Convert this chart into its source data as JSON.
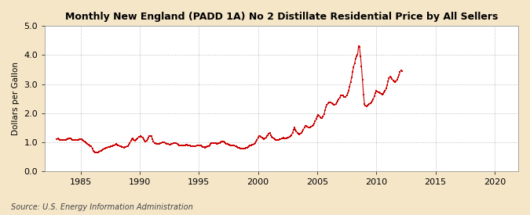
{
  "title": "Monthly New England (PADD 1A) No 2 Distillate Residential Price by All Sellers",
  "ylabel": "Dollars per Gallon",
  "source": "Source: U.S. Energy Information Administration",
  "outer_bg": "#f5e6c8",
  "plot_bg": "#ffffff",
  "line_color": "#cc0000",
  "xlim": [
    1982,
    2022
  ],
  "ylim": [
    0.0,
    5.0
  ],
  "yticks": [
    0.0,
    1.0,
    2.0,
    3.0,
    4.0,
    5.0
  ],
  "xticks": [
    1985,
    1990,
    1995,
    2000,
    2005,
    2010,
    2015,
    2020
  ],
  "data": [
    [
      1983.0,
      1.1
    ],
    [
      1983.08,
      1.12
    ],
    [
      1983.17,
      1.11
    ],
    [
      1983.25,
      1.09
    ],
    [
      1983.33,
      1.08
    ],
    [
      1983.42,
      1.07
    ],
    [
      1983.5,
      1.07
    ],
    [
      1983.58,
      1.08
    ],
    [
      1983.67,
      1.09
    ],
    [
      1983.75,
      1.09
    ],
    [
      1983.83,
      1.1
    ],
    [
      1983.92,
      1.11
    ],
    [
      1984.0,
      1.12
    ],
    [
      1984.08,
      1.13
    ],
    [
      1984.17,
      1.12
    ],
    [
      1984.25,
      1.1
    ],
    [
      1984.33,
      1.09
    ],
    [
      1984.42,
      1.08
    ],
    [
      1984.5,
      1.07
    ],
    [
      1984.58,
      1.07
    ],
    [
      1984.67,
      1.07
    ],
    [
      1984.75,
      1.08
    ],
    [
      1984.83,
      1.09
    ],
    [
      1984.92,
      1.1
    ],
    [
      1985.0,
      1.1
    ],
    [
      1985.08,
      1.1
    ],
    [
      1985.17,
      1.08
    ],
    [
      1985.25,
      1.04
    ],
    [
      1985.33,
      1.01
    ],
    [
      1985.42,
      0.99
    ],
    [
      1985.5,
      0.96
    ],
    [
      1985.58,
      0.93
    ],
    [
      1985.67,
      0.91
    ],
    [
      1985.75,
      0.89
    ],
    [
      1985.83,
      0.87
    ],
    [
      1985.92,
      0.85
    ],
    [
      1986.0,
      0.78
    ],
    [
      1986.08,
      0.69
    ],
    [
      1986.17,
      0.66
    ],
    [
      1986.25,
      0.65
    ],
    [
      1986.33,
      0.64
    ],
    [
      1986.42,
      0.64
    ],
    [
      1986.5,
      0.65
    ],
    [
      1986.58,
      0.67
    ],
    [
      1986.67,
      0.69
    ],
    [
      1986.75,
      0.71
    ],
    [
      1986.83,
      0.73
    ],
    [
      1986.92,
      0.75
    ],
    [
      1987.0,
      0.77
    ],
    [
      1987.08,
      0.79
    ],
    [
      1987.17,
      0.81
    ],
    [
      1987.25,
      0.82
    ],
    [
      1987.33,
      0.83
    ],
    [
      1987.42,
      0.84
    ],
    [
      1987.5,
      0.84
    ],
    [
      1987.58,
      0.85
    ],
    [
      1987.67,
      0.86
    ],
    [
      1987.75,
      0.88
    ],
    [
      1987.83,
      0.89
    ],
    [
      1987.92,
      0.91
    ],
    [
      1988.0,
      0.93
    ],
    [
      1988.08,
      0.92
    ],
    [
      1988.17,
      0.9
    ],
    [
      1988.25,
      0.88
    ],
    [
      1988.33,
      0.86
    ],
    [
      1988.42,
      0.85
    ],
    [
      1988.5,
      0.84
    ],
    [
      1988.58,
      0.83
    ],
    [
      1988.67,
      0.82
    ],
    [
      1988.75,
      0.83
    ],
    [
      1988.83,
      0.84
    ],
    [
      1988.92,
      0.85
    ],
    [
      1989.0,
      0.87
    ],
    [
      1989.08,
      0.91
    ],
    [
      1989.17,
      0.97
    ],
    [
      1989.25,
      1.04
    ],
    [
      1989.33,
      1.11
    ],
    [
      1989.42,
      1.13
    ],
    [
      1989.5,
      1.09
    ],
    [
      1989.58,
      1.06
    ],
    [
      1989.67,
      1.07
    ],
    [
      1989.75,
      1.1
    ],
    [
      1989.83,
      1.14
    ],
    [
      1989.92,
      1.18
    ],
    [
      1990.0,
      1.18
    ],
    [
      1990.08,
      1.22
    ],
    [
      1990.17,
      1.19
    ],
    [
      1990.25,
      1.16
    ],
    [
      1990.33,
      1.11
    ],
    [
      1990.42,
      1.06
    ],
    [
      1990.5,
      1.02
    ],
    [
      1990.58,
      1.04
    ],
    [
      1990.67,
      1.1
    ],
    [
      1990.75,
      1.17
    ],
    [
      1990.83,
      1.22
    ],
    [
      1990.92,
      1.22
    ],
    [
      1991.0,
      1.2
    ],
    [
      1991.08,
      1.1
    ],
    [
      1991.17,
      1.02
    ],
    [
      1991.25,
      0.98
    ],
    [
      1991.33,
      0.96
    ],
    [
      1991.42,
      0.94
    ],
    [
      1991.5,
      0.93
    ],
    [
      1991.58,
      0.93
    ],
    [
      1991.67,
      0.94
    ],
    [
      1991.75,
      0.96
    ],
    [
      1991.83,
      0.98
    ],
    [
      1991.92,
      1.0
    ],
    [
      1992.0,
      1.0
    ],
    [
      1992.08,
      0.99
    ],
    [
      1992.17,
      0.97
    ],
    [
      1992.25,
      0.95
    ],
    [
      1992.33,
      0.94
    ],
    [
      1992.42,
      0.93
    ],
    [
      1992.5,
      0.92
    ],
    [
      1992.58,
      0.92
    ],
    [
      1992.67,
      0.93
    ],
    [
      1992.75,
      0.94
    ],
    [
      1992.83,
      0.96
    ],
    [
      1992.92,
      0.97
    ],
    [
      1993.0,
      0.97
    ],
    [
      1993.08,
      0.96
    ],
    [
      1993.17,
      0.94
    ],
    [
      1993.25,
      0.92
    ],
    [
      1993.33,
      0.9
    ],
    [
      1993.42,
      0.89
    ],
    [
      1993.5,
      0.88
    ],
    [
      1993.58,
      0.88
    ],
    [
      1993.67,
      0.88
    ],
    [
      1993.75,
      0.89
    ],
    [
      1993.83,
      0.9
    ],
    [
      1993.92,
      0.91
    ],
    [
      1994.0,
      0.91
    ],
    [
      1994.08,
      0.9
    ],
    [
      1994.17,
      0.89
    ],
    [
      1994.25,
      0.88
    ],
    [
      1994.33,
      0.87
    ],
    [
      1994.42,
      0.86
    ],
    [
      1994.5,
      0.85
    ],
    [
      1994.58,
      0.85
    ],
    [
      1994.67,
      0.86
    ],
    [
      1994.75,
      0.87
    ],
    [
      1994.83,
      0.88
    ],
    [
      1994.92,
      0.89
    ],
    [
      1995.0,
      0.9
    ],
    [
      1995.08,
      0.9
    ],
    [
      1995.17,
      0.88
    ],
    [
      1995.25,
      0.86
    ],
    [
      1995.33,
      0.84
    ],
    [
      1995.42,
      0.83
    ],
    [
      1995.5,
      0.82
    ],
    [
      1995.58,
      0.83
    ],
    [
      1995.67,
      0.84
    ],
    [
      1995.75,
      0.85
    ],
    [
      1995.83,
      0.87
    ],
    [
      1995.92,
      0.89
    ],
    [
      1996.0,
      0.93
    ],
    [
      1996.08,
      0.96
    ],
    [
      1996.17,
      0.97
    ],
    [
      1996.25,
      0.98
    ],
    [
      1996.33,
      0.97
    ],
    [
      1996.42,
      0.96
    ],
    [
      1996.5,
      0.95
    ],
    [
      1996.58,
      0.95
    ],
    [
      1996.67,
      0.96
    ],
    [
      1996.75,
      0.97
    ],
    [
      1996.83,
      0.99
    ],
    [
      1996.92,
      1.01
    ],
    [
      1997.0,
      1.02
    ],
    [
      1997.08,
      1.01
    ],
    [
      1997.17,
      0.99
    ],
    [
      1997.25,
      0.96
    ],
    [
      1997.33,
      0.94
    ],
    [
      1997.42,
      0.93
    ],
    [
      1997.5,
      0.92
    ],
    [
      1997.58,
      0.91
    ],
    [
      1997.67,
      0.9
    ],
    [
      1997.75,
      0.89
    ],
    [
      1997.83,
      0.89
    ],
    [
      1997.92,
      0.89
    ],
    [
      1998.0,
      0.88
    ],
    [
      1998.08,
      0.87
    ],
    [
      1998.17,
      0.85
    ],
    [
      1998.25,
      0.83
    ],
    [
      1998.33,
      0.81
    ],
    [
      1998.42,
      0.8
    ],
    [
      1998.5,
      0.79
    ],
    [
      1998.58,
      0.78
    ],
    [
      1998.67,
      0.77
    ],
    [
      1998.75,
      0.77
    ],
    [
      1998.83,
      0.78
    ],
    [
      1998.92,
      0.79
    ],
    [
      1999.0,
      0.8
    ],
    [
      1999.08,
      0.81
    ],
    [
      1999.17,
      0.83
    ],
    [
      1999.25,
      0.86
    ],
    [
      1999.33,
      0.88
    ],
    [
      1999.42,
      0.9
    ],
    [
      1999.5,
      0.91
    ],
    [
      1999.58,
      0.92
    ],
    [
      1999.67,
      0.94
    ],
    [
      1999.75,
      0.97
    ],
    [
      1999.83,
      1.02
    ],
    [
      1999.92,
      1.08
    ],
    [
      2000.0,
      1.15
    ],
    [
      2000.08,
      1.22
    ],
    [
      2000.17,
      1.22
    ],
    [
      2000.25,
      1.19
    ],
    [
      2000.33,
      1.16
    ],
    [
      2000.42,
      1.13
    ],
    [
      2000.5,
      1.11
    ],
    [
      2000.58,
      1.12
    ],
    [
      2000.67,
      1.15
    ],
    [
      2000.75,
      1.2
    ],
    [
      2000.83,
      1.25
    ],
    [
      2000.92,
      1.3
    ],
    [
      2001.0,
      1.32
    ],
    [
      2001.08,
      1.25
    ],
    [
      2001.17,
      1.19
    ],
    [
      2001.25,
      1.15
    ],
    [
      2001.33,
      1.13
    ],
    [
      2001.42,
      1.11
    ],
    [
      2001.5,
      1.09
    ],
    [
      2001.58,
      1.08
    ],
    [
      2001.67,
      1.08
    ],
    [
      2001.75,
      1.09
    ],
    [
      2001.83,
      1.1
    ],
    [
      2001.92,
      1.11
    ],
    [
      2002.0,
      1.13
    ],
    [
      2002.08,
      1.14
    ],
    [
      2002.17,
      1.15
    ],
    [
      2002.25,
      1.14
    ],
    [
      2002.33,
      1.13
    ],
    [
      2002.42,
      1.14
    ],
    [
      2002.5,
      1.16
    ],
    [
      2002.58,
      1.17
    ],
    [
      2002.67,
      1.19
    ],
    [
      2002.75,
      1.21
    ],
    [
      2002.83,
      1.25
    ],
    [
      2002.92,
      1.32
    ],
    [
      2003.0,
      1.42
    ],
    [
      2003.08,
      1.5
    ],
    [
      2003.17,
      1.43
    ],
    [
      2003.25,
      1.37
    ],
    [
      2003.33,
      1.32
    ],
    [
      2003.42,
      1.29
    ],
    [
      2003.5,
      1.27
    ],
    [
      2003.58,
      1.28
    ],
    [
      2003.67,
      1.32
    ],
    [
      2003.75,
      1.37
    ],
    [
      2003.83,
      1.43
    ],
    [
      2003.92,
      1.5
    ],
    [
      2004.0,
      1.56
    ],
    [
      2004.08,
      1.55
    ],
    [
      2004.17,
      1.53
    ],
    [
      2004.25,
      1.51
    ],
    [
      2004.33,
      1.51
    ],
    [
      2004.42,
      1.52
    ],
    [
      2004.5,
      1.54
    ],
    [
      2004.58,
      1.56
    ],
    [
      2004.67,
      1.59
    ],
    [
      2004.75,
      1.64
    ],
    [
      2004.83,
      1.71
    ],
    [
      2004.92,
      1.8
    ],
    [
      2005.0,
      1.88
    ],
    [
      2005.08,
      1.93
    ],
    [
      2005.17,
      1.91
    ],
    [
      2005.25,
      1.87
    ],
    [
      2005.33,
      1.84
    ],
    [
      2005.42,
      1.84
    ],
    [
      2005.5,
      1.88
    ],
    [
      2005.58,
      1.96
    ],
    [
      2005.67,
      2.1
    ],
    [
      2005.75,
      2.21
    ],
    [
      2005.83,
      2.28
    ],
    [
      2005.92,
      2.33
    ],
    [
      2006.0,
      2.37
    ],
    [
      2006.08,
      2.38
    ],
    [
      2006.17,
      2.36
    ],
    [
      2006.25,
      2.33
    ],
    [
      2006.33,
      2.31
    ],
    [
      2006.42,
      2.3
    ],
    [
      2006.5,
      2.29
    ],
    [
      2006.58,
      2.31
    ],
    [
      2006.67,
      2.36
    ],
    [
      2006.75,
      2.42
    ],
    [
      2006.83,
      2.48
    ],
    [
      2006.92,
      2.54
    ],
    [
      2007.0,
      2.6
    ],
    [
      2007.08,
      2.61
    ],
    [
      2007.17,
      2.6
    ],
    [
      2007.25,
      2.57
    ],
    [
      2007.33,
      2.55
    ],
    [
      2007.42,
      2.57
    ],
    [
      2007.5,
      2.62
    ],
    [
      2007.58,
      2.68
    ],
    [
      2007.67,
      2.78
    ],
    [
      2007.75,
      2.92
    ],
    [
      2007.83,
      3.08
    ],
    [
      2007.92,
      3.22
    ],
    [
      2008.0,
      3.42
    ],
    [
      2008.08,
      3.58
    ],
    [
      2008.17,
      3.72
    ],
    [
      2008.25,
      3.87
    ],
    [
      2008.33,
      3.95
    ],
    [
      2008.42,
      4.0
    ],
    [
      2008.5,
      4.3
    ],
    [
      2008.58,
      4.28
    ],
    [
      2008.67,
      3.95
    ],
    [
      2008.75,
      3.6
    ],
    [
      2008.83,
      3.15
    ],
    [
      2008.92,
      2.65
    ],
    [
      2009.0,
      2.32
    ],
    [
      2009.08,
      2.25
    ],
    [
      2009.17,
      2.24
    ],
    [
      2009.25,
      2.27
    ],
    [
      2009.33,
      2.29
    ],
    [
      2009.42,
      2.31
    ],
    [
      2009.5,
      2.33
    ],
    [
      2009.58,
      2.37
    ],
    [
      2009.67,
      2.42
    ],
    [
      2009.75,
      2.48
    ],
    [
      2009.83,
      2.58
    ],
    [
      2009.92,
      2.68
    ],
    [
      2010.0,
      2.77
    ],
    [
      2010.08,
      2.75
    ],
    [
      2010.17,
      2.73
    ],
    [
      2010.25,
      2.71
    ],
    [
      2010.33,
      2.68
    ],
    [
      2010.42,
      2.66
    ],
    [
      2010.5,
      2.65
    ],
    [
      2010.58,
      2.67
    ],
    [
      2010.67,
      2.71
    ],
    [
      2010.75,
      2.76
    ],
    [
      2010.83,
      2.85
    ],
    [
      2010.92,
      2.95
    ],
    [
      2011.0,
      3.1
    ],
    [
      2011.08,
      3.2
    ],
    [
      2011.17,
      3.25
    ],
    [
      2011.25,
      3.23
    ],
    [
      2011.33,
      3.18
    ],
    [
      2011.42,
      3.13
    ],
    [
      2011.5,
      3.09
    ],
    [
      2011.58,
      3.08
    ],
    [
      2011.67,
      3.1
    ],
    [
      2011.75,
      3.15
    ],
    [
      2011.83,
      3.22
    ],
    [
      2011.92,
      3.3
    ],
    [
      2012.0,
      3.42
    ],
    [
      2012.08,
      3.47
    ],
    [
      2012.17,
      3.45
    ]
  ]
}
